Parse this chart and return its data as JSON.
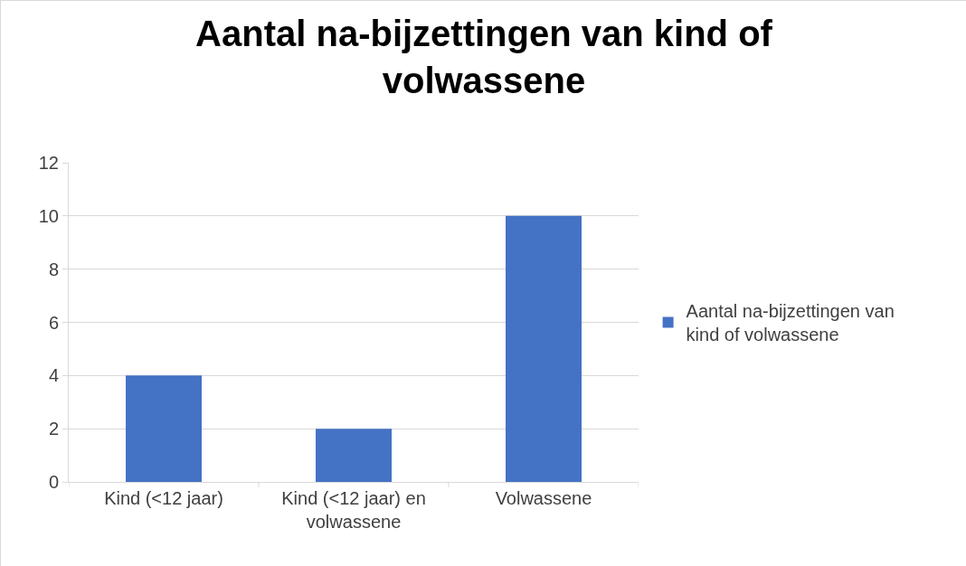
{
  "chart_data": {
    "type": "bar",
    "title": "Aantal na-bijzettingen van kind of volwassene",
    "categories": [
      "Kind (<12 jaar)",
      "Kind (<12 jaar) en volwassene",
      "Volwassene"
    ],
    "series": [
      {
        "name": "Aantal na-bijzettingen van kind of volwassene",
        "color": "#4472c4",
        "values": [
          4,
          2,
          10
        ]
      }
    ],
    "ylim": [
      0,
      12
    ],
    "yticks": [
      0,
      2,
      4,
      6,
      8,
      10,
      12
    ],
    "grid": "y",
    "legend": "right"
  }
}
